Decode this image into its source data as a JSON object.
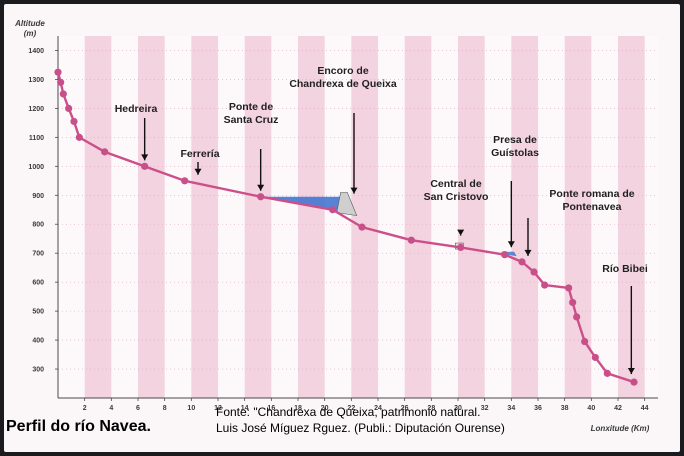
{
  "caption": "Perfil do río Navea.",
  "source_lines": [
    "Fonte: \"Chandrexa de Queixa, patrimonio natural.",
    "Luis José Míguez Rguez. (Publi.: Diputación Ourense)"
  ],
  "colors": {
    "profile": "#cc4f8a",
    "point": "#c8508a",
    "stripe": "#f3d3df",
    "reservoir": "#3a6fd0",
    "axis": "#4a4a4a"
  },
  "chart_data": {
    "type": "line",
    "ylabel": [
      "Altitude",
      "(m)"
    ],
    "xlabel": "Lonxitude (Km)",
    "xlim": [
      0,
      45
    ],
    "ylim": [
      200,
      1450
    ],
    "x_ticks": [
      2,
      4,
      6,
      8,
      10,
      12,
      14,
      16,
      18,
      20,
      22,
      24,
      26,
      28,
      30,
      32,
      34,
      36,
      38,
      40,
      42,
      44
    ],
    "y_ticks": [
      300,
      400,
      500,
      600,
      700,
      800,
      900,
      1000,
      1100,
      1200,
      1300,
      1400
    ],
    "grid": "alternating vertical bands",
    "series": [
      {
        "values": [
          [
            0,
            1325
          ],
          [
            0.2,
            1290
          ],
          [
            0.4,
            1250
          ],
          [
            0.8,
            1200
          ],
          [
            1.2,
            1155
          ],
          [
            1.6,
            1100
          ],
          [
            3.5,
            1050
          ],
          [
            6.5,
            1000
          ],
          [
            9.5,
            950
          ],
          [
            15.2,
            895
          ],
          [
            20.6,
            850
          ],
          [
            22.8,
            790
          ],
          [
            26.5,
            745
          ],
          [
            30.2,
            720
          ],
          [
            33.5,
            695
          ],
          [
            34.8,
            670
          ],
          [
            35.7,
            635
          ],
          [
            36.5,
            590
          ],
          [
            38.3,
            580
          ],
          [
            38.6,
            530
          ],
          [
            38.9,
            480
          ],
          [
            39.5,
            395
          ],
          [
            40.3,
            340
          ],
          [
            41.2,
            285
          ],
          [
            43.2,
            255
          ]
        ]
      }
    ],
    "annotations": [
      {
        "label": [
          "Hedreira"
        ],
        "x": 6.5,
        "y": 1000
      },
      {
        "label": [
          "Ferrería"
        ],
        "x": 10.5,
        "y": 950
      },
      {
        "label": [
          "Ponte de",
          "Santa Cruz"
        ],
        "x": 15.2,
        "y": 895
      },
      {
        "label": [
          "Encoro de",
          "Chandrexa de Queixa"
        ],
        "x": 22.2,
        "y": 885
      },
      {
        "label": [
          "Central de",
          "San Cristovo"
        ],
        "x": 30.2,
        "y": 740
      },
      {
        "label": [
          "Presa de",
          "Guístolas"
        ],
        "x": 34.0,
        "y": 700
      },
      {
        "label": [
          "Ponte romana de",
          "Pontenavea"
        ],
        "x": 35.7,
        "y": 670
      },
      {
        "label": [
          "Río Bibei"
        ],
        "x": 43.0,
        "y": 262
      }
    ]
  }
}
